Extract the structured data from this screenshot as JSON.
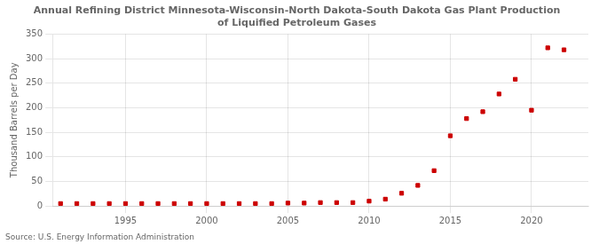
{
  "chart_data": {
    "type": "scatter",
    "title": "Annual Refining District Minnesota-Wisconsin-North Dakota-South Dakota Gas Plant Production\nof Liquified Petroleum Gases",
    "ylabel": "Thousand Barrels per Day",
    "source": "Source: U.S. Energy Information Administration",
    "x": [
      1991,
      1992,
      1993,
      1994,
      1995,
      1996,
      1997,
      1998,
      1999,
      2000,
      2001,
      2002,
      2003,
      2004,
      2005,
      2006,
      2007,
      2008,
      2009,
      2010,
      2011,
      2012,
      2013,
      2014,
      2015,
      2016,
      2017,
      2018,
      2019,
      2020,
      2021,
      2022
    ],
    "values": [
      5,
      5,
      5,
      5,
      5,
      5,
      5,
      5,
      5,
      5,
      5,
      5,
      5,
      5,
      6,
      6,
      7,
      7,
      7,
      10,
      14,
      26,
      42,
      72,
      143,
      178,
      192,
      228,
      258,
      195,
      322,
      318
    ],
    "color": "#cc0000",
    "marker": "square",
    "xlim": [
      1990.5,
      2023.5
    ],
    "xticks": [
      1995,
      2000,
      2005,
      2010,
      2015,
      2020
    ],
    "ylim": [
      0,
      350
    ],
    "yticks": [
      0,
      50,
      100,
      150,
      200,
      250,
      300,
      350
    ],
    "grid": true
  }
}
